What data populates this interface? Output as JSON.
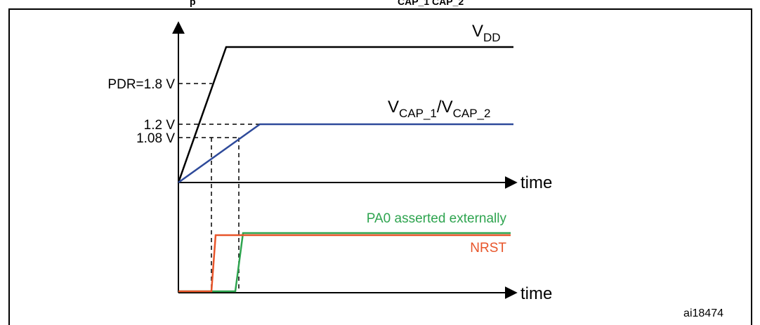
{
  "caption": {
    "title_fragment": "p",
    "subscript_fragment": "CAP_1   CAP_2"
  },
  "signals": {
    "vdd": {
      "label_main": "V",
      "label_sub": "DD",
      "color": "#000000"
    },
    "vcap": {
      "label_main1": "V",
      "label_sub1": "CAP_1",
      "label_sep": "/",
      "label_main2": "V",
      "label_sub2": "CAP_2",
      "color": "#2e4a9a"
    },
    "pa0": {
      "label": "PA0 asserted externally",
      "color": "#2ea44f"
    },
    "nrst": {
      "label": "NRST",
      "color": "#e8552a"
    }
  },
  "levels": {
    "pdr": "PDR=1.8 V",
    "v12": "1.2 V",
    "v108": "1.08 V"
  },
  "axes": {
    "time_top": "time",
    "time_bottom": "time"
  },
  "figure_id": "ai18474"
}
